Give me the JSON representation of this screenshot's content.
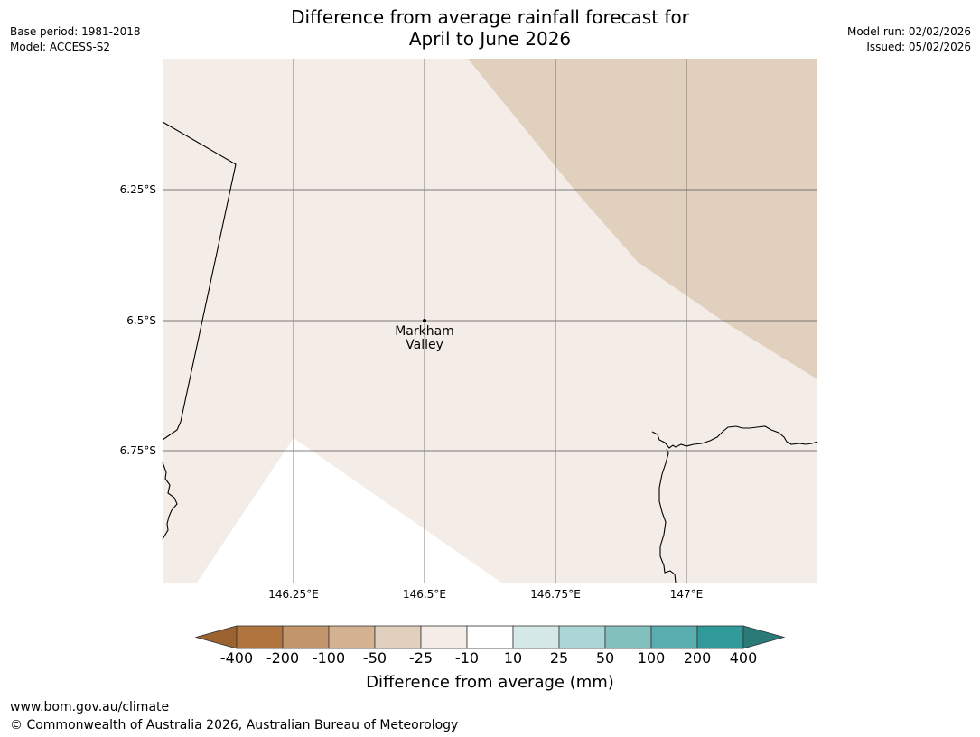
{
  "title": {
    "line1": "Difference from average rainfall forecast for",
    "line2": "April to June 2026"
  },
  "meta_left": {
    "base_period": "Base period: 1981-2018",
    "model": "Model: ACCESS-S2"
  },
  "meta_right": {
    "model_run": "Model run: 02/02/2026",
    "issued": "Issued: 05/02/2026"
  },
  "map": {
    "latitude_labels": [
      "6.25°S",
      "6.5°S",
      "6.75°S"
    ],
    "longitude_labels": [
      "146.25°E",
      "146.5°E",
      "146.75°E",
      "147°E"
    ],
    "extent": {
      "lon": [
        146.0,
        147.25
      ],
      "lat": [
        -6.0,
        -7.0
      ]
    },
    "place": {
      "name_line1": "Markham",
      "name_line2": "Valley",
      "lon": 146.5,
      "lat": -6.5
    },
    "fill_colors": {
      "band_neg10_neg25": "#f4ece6",
      "band_neg25_neg50": "#e2d0be",
      "band_10_neg10": "#ffffff"
    }
  },
  "colorbar": {
    "title": "Difference from average (mm)",
    "tick_labels": [
      "-400",
      "-200",
      "-100",
      "-50",
      "-25",
      "-10",
      "10",
      "25",
      "50",
      "100",
      "200",
      "400"
    ],
    "colors": [
      "#9c6330",
      "#b0753f",
      "#c3956a",
      "#d4b291",
      "#e2d0be",
      "#f4ece6",
      "#ffffff",
      "#d4e8e8",
      "#acd6d6",
      "#82c0bd",
      "#5aadae",
      "#2f9a99",
      "#2a7a78"
    ]
  },
  "footer": {
    "url": "www.bom.gov.au/climate",
    "copyright": "© Commonwealth of Australia 2026, Australian Bureau of Meteorology"
  }
}
